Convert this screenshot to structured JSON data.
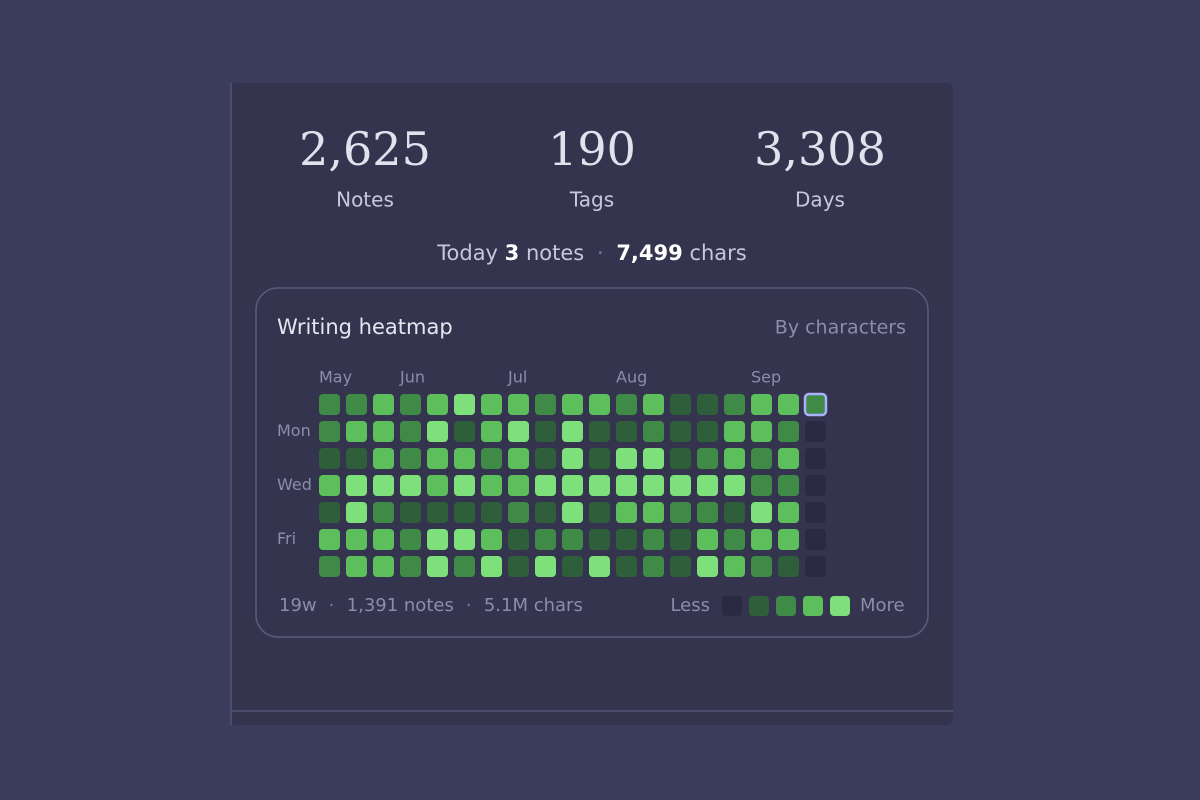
{
  "stats": [
    {
      "value": "2,625",
      "label": "Notes"
    },
    {
      "value": "190",
      "label": "Tags"
    },
    {
      "value": "3,308",
      "label": "Days"
    }
  ],
  "today": {
    "label": "Today",
    "notes_count": "3",
    "notes_label": "notes",
    "chars_count": "7,499",
    "chars_label": "chars"
  },
  "separator": "·",
  "heatmap": {
    "title": "Writing heatmap",
    "mode": "By characters",
    "months": [
      "May",
      "Jun",
      "Jul",
      "Aug",
      "Sep"
    ],
    "day_labels": [
      "Mon",
      "Wed",
      "Fri"
    ],
    "colors": [
      "#2a2a42",
      "#2f5f3a",
      "#3f8a47",
      "#5cbf5c",
      "#7ee07a"
    ],
    "today_cell": {
      "row": 0,
      "col": 18
    },
    "levels": [
      [
        2,
        2,
        3,
        2,
        3,
        4,
        3,
        3,
        2,
        3,
        3,
        2,
        3,
        1,
        1,
        2,
        3,
        3,
        2
      ],
      [
        2,
        3,
        3,
        2,
        4,
        1,
        3,
        4,
        1,
        4,
        1,
        1,
        2,
        1,
        1,
        3,
        3,
        2,
        0
      ],
      [
        1,
        1,
        3,
        2,
        3,
        3,
        2,
        3,
        1,
        4,
        1,
        4,
        4,
        1,
        2,
        3,
        2,
        3,
        0
      ],
      [
        3,
        4,
        4,
        4,
        3,
        4,
        3,
        3,
        4,
        4,
        4,
        4,
        4,
        4,
        4,
        4,
        2,
        2,
        0
      ],
      [
        1,
        4,
        2,
        1,
        1,
        1,
        1,
        2,
        1,
        4,
        1,
        3,
        3,
        2,
        2,
        1,
        4,
        3,
        0
      ],
      [
        3,
        3,
        3,
        2,
        4,
        4,
        3,
        1,
        2,
        2,
        1,
        1,
        2,
        1,
        3,
        2,
        3,
        3,
        0
      ],
      [
        2,
        3,
        3,
        2,
        4,
        2,
        4,
        1,
        4,
        1,
        4,
        1,
        2,
        1,
        4,
        3,
        2,
        1,
        0
      ]
    ],
    "footer": {
      "weeks": "19w",
      "notes": "1,391 notes",
      "chars": "5.1M chars"
    },
    "legend": {
      "less": "Less",
      "more": "More"
    }
  }
}
